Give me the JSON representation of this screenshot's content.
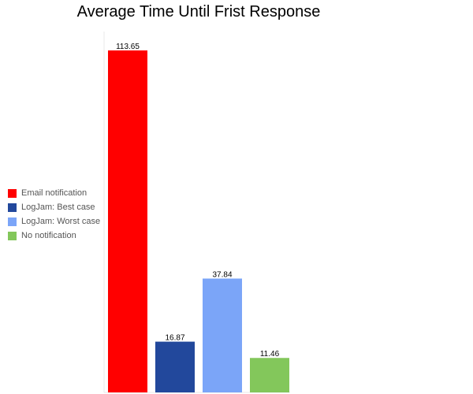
{
  "chart_data": {
    "type": "bar",
    "title": "Average Time Until Frist Response",
    "xlabel": "",
    "ylabel": "",
    "ylim": [
      0,
      113.65
    ],
    "grid": false,
    "legend_position": "left",
    "data_labels": true,
    "categories": [
      "Email notification",
      "LogJam: Best case",
      "LogJam: Worst case",
      "No notification"
    ],
    "values": [
      113.65,
      16.87,
      37.84,
      11.46
    ],
    "series": [
      {
        "name": "Email notification",
        "value": 113.65,
        "label": "113.65",
        "color": "#ff0000"
      },
      {
        "name": "LogJam: Best case",
        "value": 16.87,
        "label": "16.87",
        "color": "#22489c"
      },
      {
        "name": "LogJam: Worst case",
        "value": 37.84,
        "label": "37.84",
        "color": "#7ba5f8"
      },
      {
        "name": "No notification",
        "value": 11.46,
        "label": "11.46",
        "color": "#83c75b"
      }
    ]
  }
}
